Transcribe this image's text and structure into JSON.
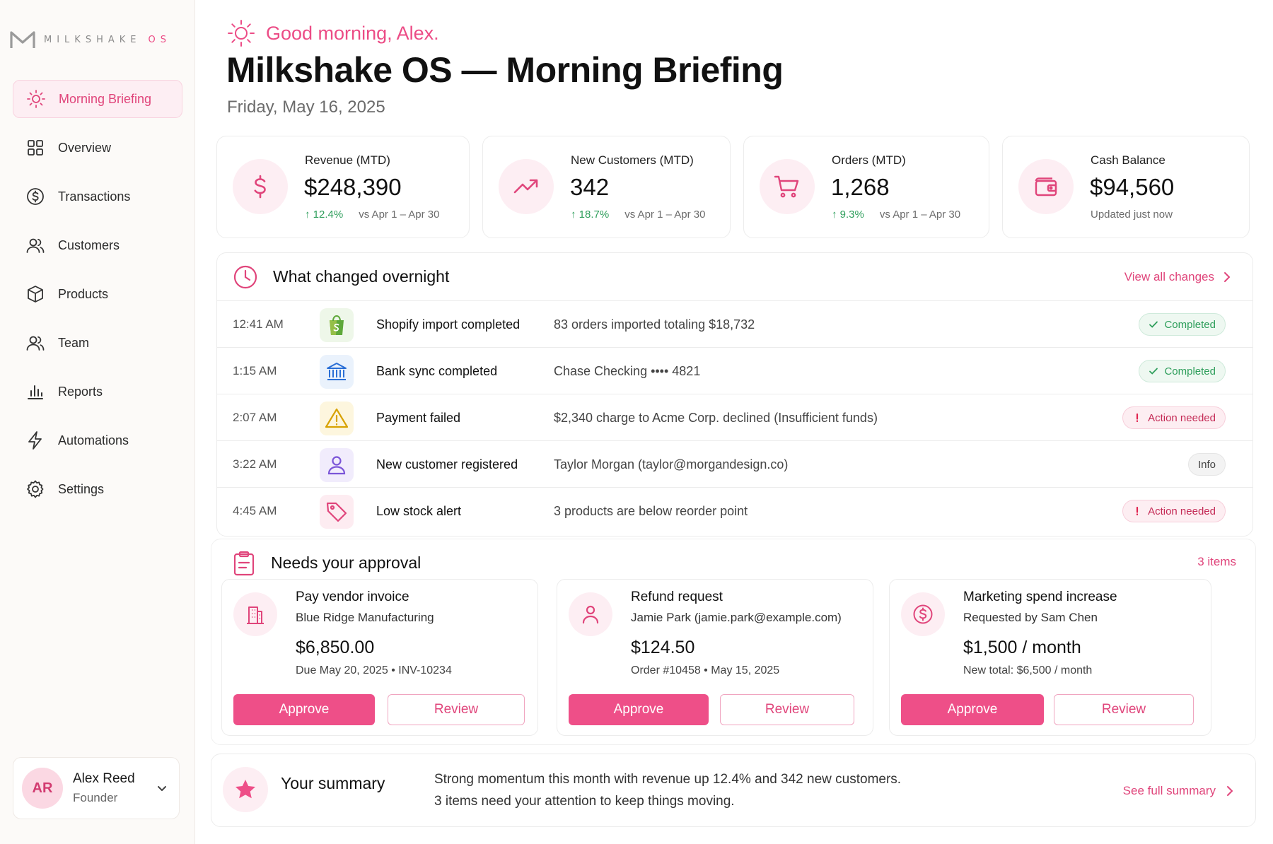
{
  "brand": {
    "logo_icon": "milkshake-m-logo",
    "name": "MILKSHAKE",
    "suffix": "OS",
    "accent": "#ec4c86"
  },
  "sidebar": {
    "items": [
      {
        "label": "Morning Briefing",
        "icon": "sun-icon",
        "active": true
      },
      {
        "label": "Overview",
        "icon": "grid-icon"
      },
      {
        "label": "Transactions",
        "icon": "dollar-circle-icon"
      },
      {
        "label": "Customers",
        "icon": "users-icon"
      },
      {
        "label": "Products",
        "icon": "box-icon"
      },
      {
        "label": "Team",
        "icon": "team-icon"
      },
      {
        "label": "Reports",
        "icon": "bar-chart-icon"
      },
      {
        "label": "Automations",
        "icon": "lightning-icon"
      },
      {
        "label": "Settings",
        "icon": "gear-icon"
      }
    ]
  },
  "user": {
    "initials": "AR",
    "name": "Alex Reed",
    "role": "Founder"
  },
  "header": {
    "greeting": "Good morning, Alex.",
    "title": "Milkshake OS — Morning Briefing",
    "date": "Friday, May 16, 2025"
  },
  "kpis": [
    {
      "label": "Revenue (MTD)",
      "value": "$248,390",
      "delta": "12.4%",
      "compare": "vs Apr 1 – Apr 30",
      "icon": "dollar-icon"
    },
    {
      "label": "New Customers (MTD)",
      "value": "342",
      "delta": "18.7%",
      "compare": "vs Apr 1 – Apr 30",
      "icon": "trend-up-icon"
    },
    {
      "label": "Orders (MTD)",
      "value": "1,268",
      "delta": "9.3%",
      "compare": "vs Apr 1 – Apr 30",
      "icon": "cart-icon"
    },
    {
      "label": "Cash Balance",
      "value": "$94,560",
      "note": "Updated just now",
      "icon": "wallet-icon"
    }
  ],
  "overnight": {
    "title": "What changed overnight",
    "link": "View all changes",
    "rows": [
      {
        "time": "12:41 AM",
        "event": "Shopify import completed",
        "detail": "83 orders imported totaling $18,732",
        "status": "Completed",
        "type": "ok",
        "icon": "shopify-bag-icon"
      },
      {
        "time": "1:15 AM",
        "event": "Bank sync completed",
        "detail": "Chase Checking •••• 4821",
        "status": "Completed",
        "type": "ok",
        "icon": "bank-icon"
      },
      {
        "time": "2:07 AM",
        "event": "Payment failed",
        "detail": "$2,340 charge to Acme Corp. declined (Insufficient funds)",
        "status": "Action needed",
        "type": "warn",
        "icon": "warning-triangle-icon"
      },
      {
        "time": "3:22 AM",
        "event": "New customer registered",
        "detail": "Taylor Morgan (taylor@morgandesign.co)",
        "status": "Info",
        "type": "info",
        "icon": "user-icon"
      },
      {
        "time": "4:45 AM",
        "event": "Low stock alert",
        "detail": "3 products are below reorder point",
        "status": "Action needed",
        "type": "warn",
        "icon": "tag-icon"
      }
    ],
    "colors": {
      "completed": "#2e9e5b",
      "action": "#c42a55"
    }
  },
  "approval": {
    "title": "Needs your approval",
    "count": "3 items",
    "cards": [
      {
        "title": "Pay vendor invoice",
        "subtitle": "Blue Ridge Manufacturing",
        "amount": "$6,850.00",
        "meta": "Due May 20, 2025 • INV-10234",
        "approve": "Approve",
        "review": "Review",
        "icon": "building-icon"
      },
      {
        "title": "Refund request",
        "subtitle": "Jamie Park (jamie.park@example.com)",
        "amount": "$124.50",
        "meta": "Order #10458 • May 15, 2025",
        "approve": "Approve",
        "review": "Review",
        "icon": "person-icon"
      },
      {
        "title": "Marketing spend increase",
        "subtitle": "Requested by Sam Chen",
        "amount": "$1,500 / month",
        "meta": "New total: $6,500 / month",
        "approve": "Approve",
        "review": "Review",
        "icon": "dollar-circle-icon"
      }
    ]
  },
  "summary": {
    "title": "Your summary",
    "line1": "Strong momentum this month with revenue up 12.4% and 342 new customers.",
    "line2": "3 items need your attention to keep things moving.",
    "link": "See full summary",
    "icon": "star-icon"
  }
}
